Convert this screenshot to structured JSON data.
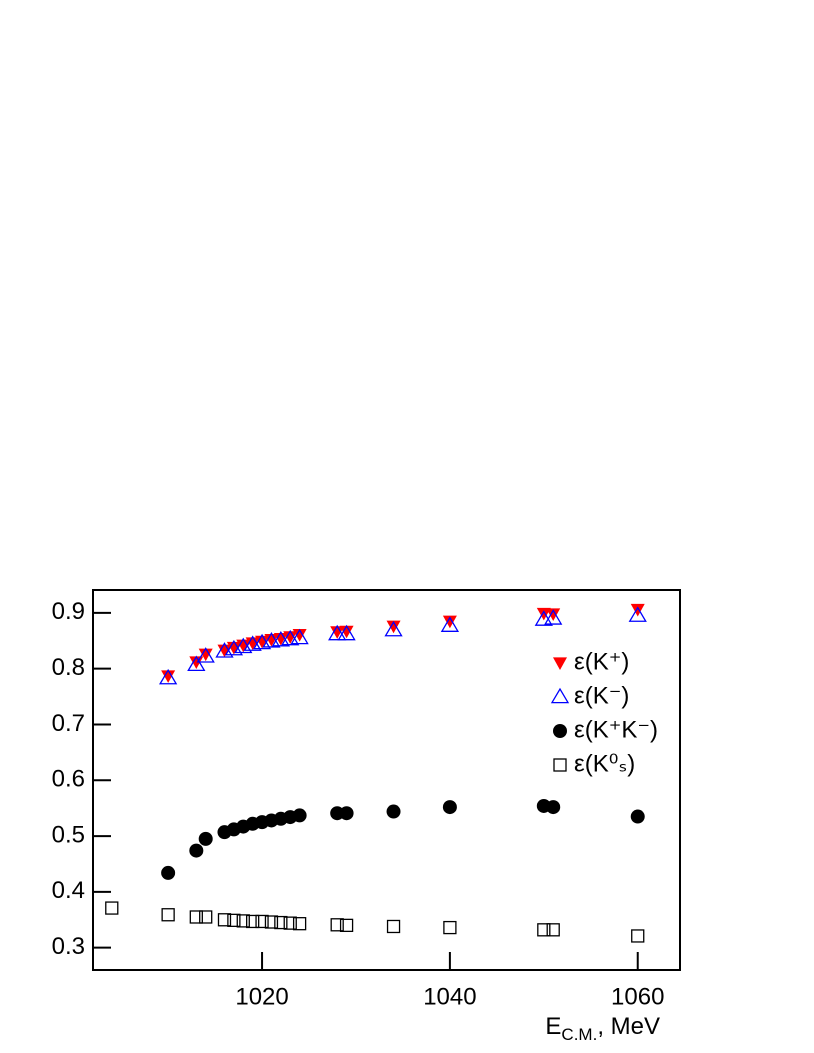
{
  "chart_data": {
    "type": "scatter",
    "x_label": {
      "main": "E",
      "sub": "C.M.",
      "rest": ", MeV"
    },
    "x": [
      1004,
      1010,
      1013,
      1014,
      1016,
      1017,
      1018,
      1019,
      1020,
      1021,
      1022,
      1023,
      1024,
      1028,
      1029,
      1034,
      1040,
      1050,
      1051,
      1060
    ],
    "series": [
      {
        "name": "ε(K⁺)",
        "color": "#ff0000",
        "marker": "triangle-down-filled",
        "values": [
          null,
          0.787,
          0.812,
          0.826,
          0.833,
          0.838,
          0.842,
          0.846,
          0.849,
          0.852,
          0.854,
          0.857,
          0.861,
          0.866,
          0.867,
          0.876,
          0.885,
          0.899,
          0.898,
          0.906
        ]
      },
      {
        "name": "ε(K⁻)",
        "color": "#0000ff",
        "marker": "triangle-up-open",
        "values": [
          null,
          0.783,
          0.807,
          0.822,
          0.831,
          0.835,
          0.839,
          0.843,
          0.846,
          0.849,
          0.851,
          0.853,
          0.855,
          0.862,
          0.862,
          0.869,
          0.877,
          0.888,
          0.89,
          0.895
        ]
      },
      {
        "name": "ε(K⁺K⁻)",
        "color": "#000000",
        "marker": "circle-filled",
        "values": [
          null,
          0.434,
          0.474,
          0.495,
          0.507,
          0.512,
          0.517,
          0.522,
          0.525,
          0.528,
          0.531,
          0.534,
          0.537,
          0.541,
          0.541,
          0.544,
          0.552,
          0.554,
          0.552,
          0.535
        ]
      },
      {
        "name": "ε(K⁰ₛ)",
        "color": "#000000",
        "marker": "square-open",
        "values": [
          0.371,
          0.359,
          0.355,
          0.355,
          0.35,
          0.349,
          0.348,
          0.347,
          0.347,
          0.346,
          0.345,
          0.344,
          0.343,
          0.341,
          0.34,
          0.338,
          0.336,
          0.332,
          0.332,
          0.321
        ]
      }
    ],
    "xlim": [
      1002,
      1064.5
    ],
    "xticks": [
      1020,
      1040,
      1060
    ],
    "ylim": [
      0.26,
      0.941
    ],
    "yticks": [
      0.3,
      0.4,
      0.5,
      0.6,
      0.7,
      0.8,
      0.9
    ],
    "grid": false,
    "legend": "right"
  }
}
